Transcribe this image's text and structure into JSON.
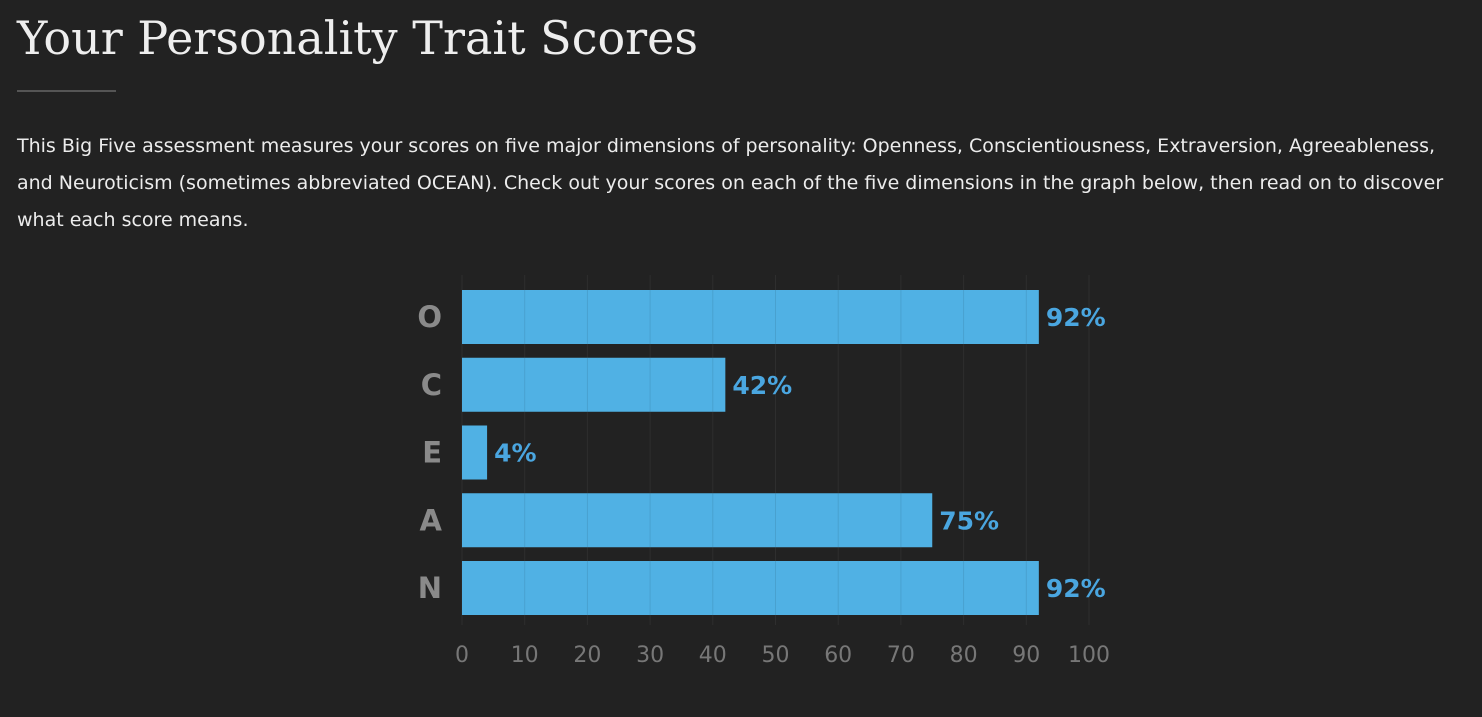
{
  "page": {
    "title": "Your Personality Trait Scores",
    "intro": "This Big Five assessment measures your scores on five major dimensions of personality: Openness, Conscientiousness, Extraversion, Agreeableness, and Neuroticism (sometimes abbreviated OCEAN). Check out your scores on each of the five dimensions in the graph below, then read on to discover what each score means."
  },
  "chart_data": {
    "type": "bar",
    "orientation": "horizontal",
    "categories": [
      "O",
      "C",
      "E",
      "A",
      "N"
    ],
    "values": [
      92,
      42,
      4,
      75,
      92
    ],
    "value_labels": [
      "92%",
      "42%",
      "4%",
      "75%",
      "92%"
    ],
    "xlim": [
      0,
      100
    ],
    "x_ticks": [
      0,
      10,
      20,
      30,
      40,
      50,
      60,
      70,
      80,
      90,
      100
    ],
    "grid": true,
    "title": "",
    "xlabel": "",
    "ylabel": "",
    "colors": {
      "bar": "#50b1e4",
      "value_label": "#4aa6e0",
      "category_label": "#8a8a8a",
      "tick_label": "#777777",
      "grid": "#2e2e2e"
    }
  }
}
